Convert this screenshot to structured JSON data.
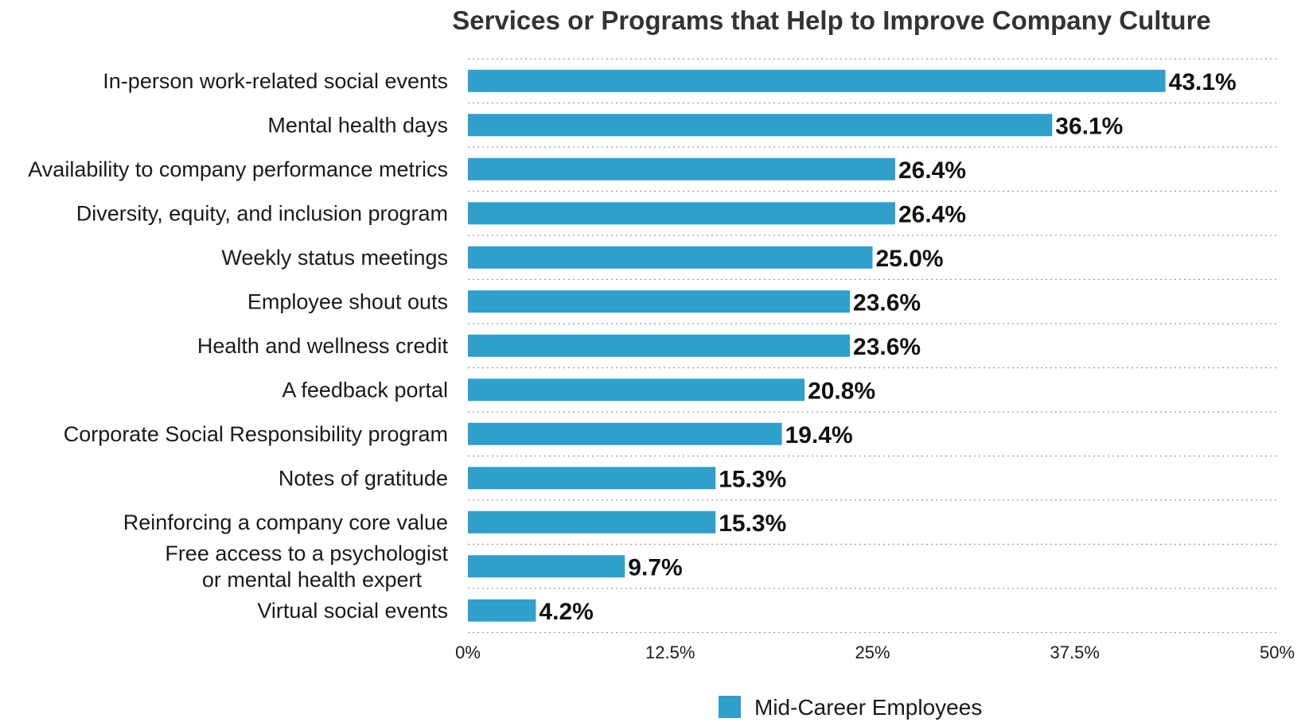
{
  "chart_data": {
    "type": "bar",
    "orientation": "horizontal",
    "title": "Services or Programs that Help to Improve Company Culture",
    "xlabel": "",
    "ylabel": "",
    "xlim": [
      0,
      50
    ],
    "x_ticks": [
      "0%",
      "12.5%",
      "25%",
      "37.5%",
      "50%"
    ],
    "x_tick_values": [
      0,
      12.5,
      25,
      37.5,
      50
    ],
    "categories": [
      "In-person work-related social events",
      "Mental health days",
      "Availability to company performance metrics",
      "Diversity, equity, and inclusion program",
      "Weekly status meetings",
      "Employee shout outs",
      "Health and wellness credit",
      "A feedback portal",
      "Corporate Social Responsibility program",
      "Notes of gratitude",
      "Reinforcing a company core value",
      "Free access to a psychologist\nor mental health expert",
      "Virtual social events"
    ],
    "series": [
      {
        "name": "Mid-Career Employees",
        "color": "#2f9fcc",
        "values": [
          43.1,
          36.1,
          26.4,
          26.4,
          25.0,
          23.6,
          23.6,
          20.8,
          19.4,
          15.3,
          15.3,
          9.7,
          4.2
        ],
        "value_labels": [
          "43.1%",
          "36.1%",
          "26.4%",
          "26.4%",
          "25.0%",
          "23.6%",
          "23.6%",
          "20.8%",
          "19.4%",
          "15.3%",
          "15.3%",
          "9.7%",
          "4.2%"
        ]
      }
    ],
    "grid": "horizontal dotted",
    "legend_position": "bottom-center"
  }
}
